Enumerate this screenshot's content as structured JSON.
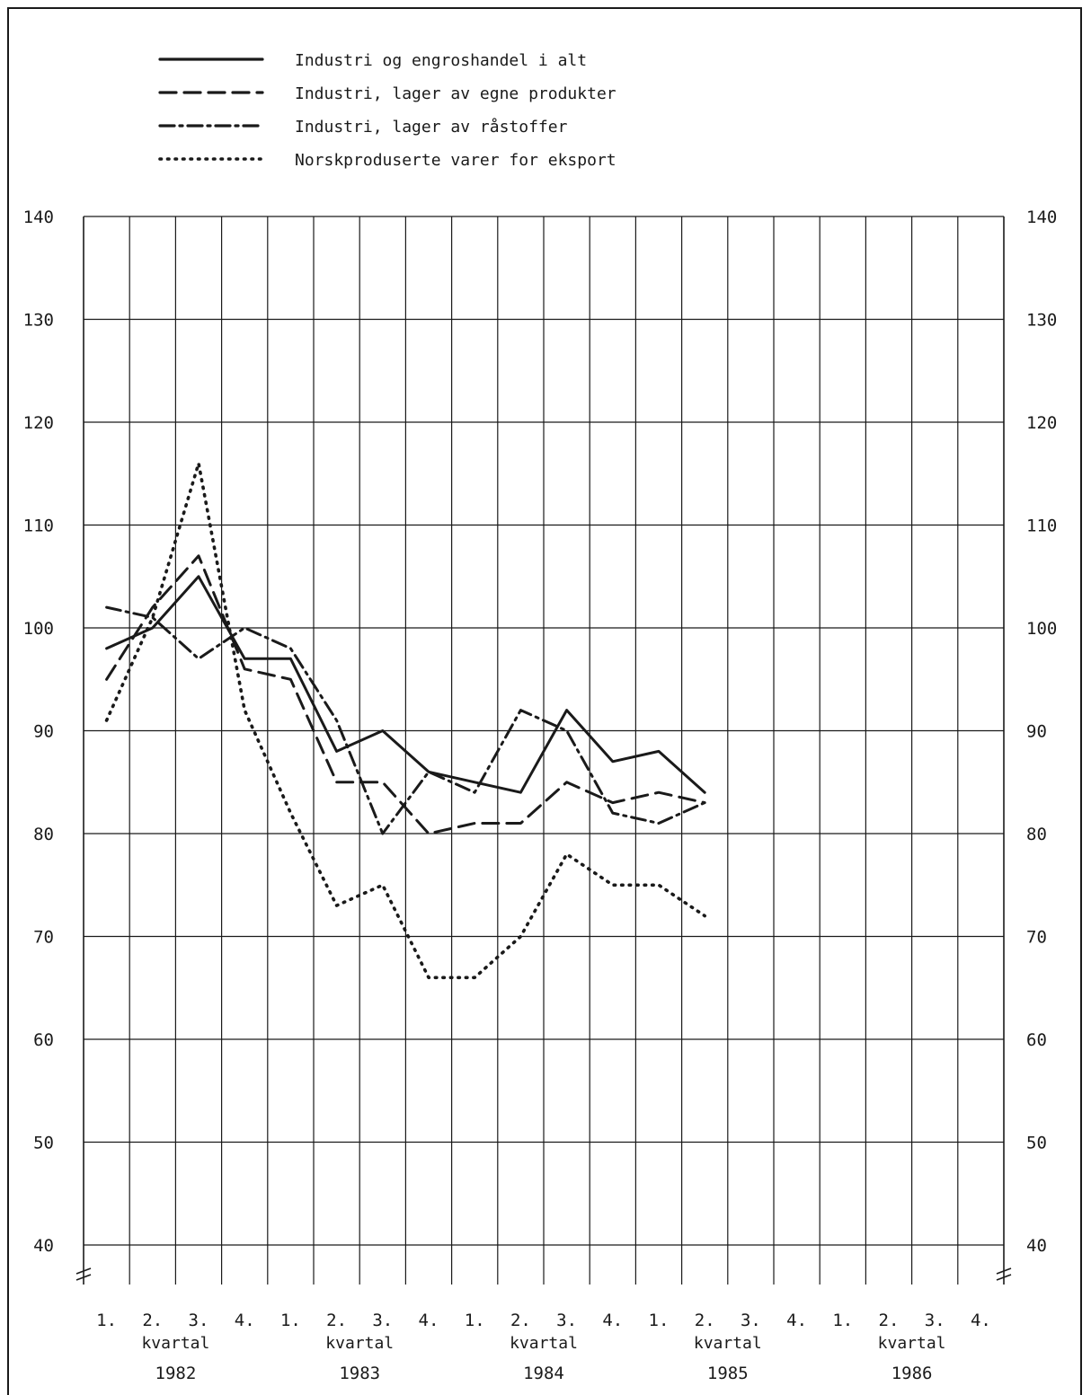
{
  "chart_data": {
    "type": "line",
    "title": "",
    "xlabel": "",
    "ylabel": "",
    "ylim": [
      40,
      140
    ],
    "yticks": [
      40,
      50,
      60,
      70,
      80,
      90,
      100,
      110,
      120,
      130,
      140
    ],
    "axis_break": true,
    "grid": true,
    "legend_placement": "top-left",
    "quarter_labels": [
      "1.",
      "2.",
      "3.",
      "4.",
      "1.",
      "2.",
      "3.",
      "4.",
      "1.",
      "2.",
      "3.",
      "4.",
      "1.",
      "2.",
      "3.",
      "4.",
      "1.",
      "2.",
      "3.",
      "4."
    ],
    "period_caption": "kvartal",
    "years": [
      "1982",
      "1983",
      "1984",
      "1985",
      "1986"
    ],
    "series": [
      {
        "name": "Industri og engroshandel i alt",
        "style": "solid",
        "values": [
          98,
          100,
          105,
          97,
          97,
          88,
          90,
          86,
          85,
          84,
          92,
          87,
          88,
          84
        ]
      },
      {
        "name": "Industri, lager av egne produkter",
        "style": "dashed",
        "values": [
          95,
          102,
          107,
          96,
          95,
          85,
          85,
          80,
          81,
          81,
          85,
          83,
          84,
          83
        ]
      },
      {
        "name": "Industri, lager av råstoffer",
        "style": "dashdot",
        "values": [
          102,
          101,
          97,
          100,
          98,
          91,
          80,
          86,
          84,
          92,
          90,
          82,
          81,
          83
        ]
      },
      {
        "name": "Norskproduserte varer for eksport",
        "style": "dotted",
        "values": [
          91,
          101,
          116,
          92,
          82,
          73,
          75,
          66,
          66,
          70,
          78,
          75,
          75,
          72
        ]
      }
    ],
    "line_color": "#1a1a1a",
    "grid_color": "#1a1a1a"
  }
}
